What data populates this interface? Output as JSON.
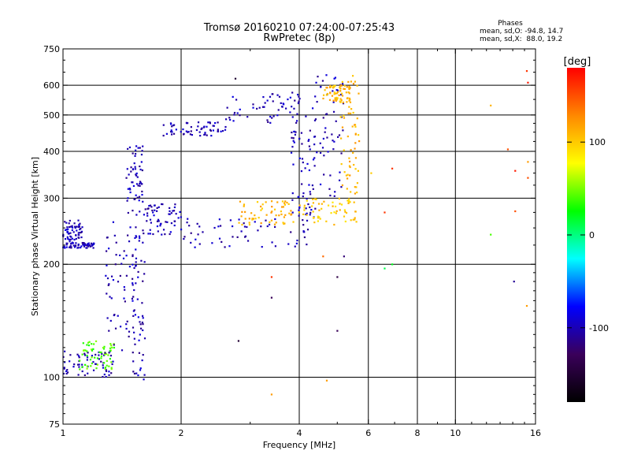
{
  "chart_data": {
    "type": "scatter",
    "title": "Tromsø 20160210 07:24:00-07:25:43",
    "subtitle": "RwPretec (8p)",
    "xlabel": "Frequency [MHz]",
    "ylabel": "Stationary phase Virtual Height [km]",
    "x_scale": "log",
    "y_scale": "log",
    "xlim": [
      1,
      16
    ],
    "ylim": [
      75,
      750
    ],
    "x_ticks": [
      1,
      2,
      4,
      6,
      8,
      10,
      16
    ],
    "x_tick_labels": [
      "1",
      "2",
      "4",
      "6",
      "8",
      "10",
      "16"
    ],
    "y_ticks": [
      75,
      100,
      200,
      300,
      400,
      500,
      600,
      750
    ],
    "y_tick_labels": [
      "75",
      "100",
      "200",
      "300",
      "400",
      "500",
      "600",
      "750"
    ],
    "grid": true,
    "stats": {
      "heading": "Phases",
      "line_o": "mean, sd,O: -94.8, 14.7",
      "line_x": "mean, sd,X:  88.0, 19.2"
    },
    "colorbar": {
      "label": "[deg]",
      "range": [
        -180,
        180
      ],
      "ticks": [
        100,
        0,
        -100
      ],
      "tick_labels": [
        "100",
        "0",
        "-100"
      ],
      "colors": [
        "#000000",
        "#3a005a",
        "#0000ff",
        "#00ffff",
        "#00ff00",
        "#ffff00",
        "#ff8800",
        "#ff0000"
      ]
    },
    "series": [
      {
        "phase": -100,
        "freq_range": [
          1.0,
          1.12
        ],
        "h_range": [
          230,
          262
        ]
      },
      {
        "phase": -100,
        "freq_range": [
          1.0,
          1.2
        ],
        "h_range": [
          221,
          229
        ]
      },
      {
        "phase": -100,
        "freq_range": [
          1.0,
          1.35
        ],
        "h_range": [
          100,
          118
        ]
      },
      {
        "phase": 40,
        "freq_range": [
          1.1,
          1.35
        ],
        "h_range": [
          105,
          125
        ]
      },
      {
        "phase": -100,
        "freq_range": [
          1.28,
          1.55
        ],
        "h_range": [
          115,
          260
        ]
      },
      {
        "phase": -100,
        "freq_range": [
          1.45,
          1.6
        ],
        "h_range": [
          270,
          420
        ]
      },
      {
        "phase": -100,
        "freq_range": [
          1.5,
          1.62
        ],
        "h_range": [
          98,
          260
        ]
      },
      {
        "phase": -100,
        "freq_range": [
          1.6,
          2.0
        ],
        "h_range": [
          240,
          290
        ]
      },
      {
        "phase": -100,
        "freq_range": [
          1.8,
          2.6
        ],
        "h_range": [
          440,
          480
        ]
      },
      {
        "phase": -100,
        "freq_range": [
          2.0,
          4.3
        ],
        "h_range": [
          222,
          265
        ]
      },
      {
        "phase": -100,
        "freq_range": [
          2.6,
          4.2
        ],
        "h_range": [
          475,
          575
        ]
      },
      {
        "phase": 110,
        "freq_range": [
          2.8,
          4.0
        ],
        "h_range": [
          255,
          295
        ]
      },
      {
        "phase": -100,
        "freq_range": [
          3.8,
          4.4
        ],
        "h_range": [
          265,
          460
        ]
      },
      {
        "phase": 100,
        "freq_range": [
          4.0,
          5.6
        ],
        "h_range": [
          255,
          300
        ]
      },
      {
        "phase": -100,
        "freq_range": [
          4.3,
          5.2
        ],
        "h_range": [
          300,
          650
        ]
      },
      {
        "phase": 110,
        "freq_range": [
          4.6,
          5.4
        ],
        "h_range": [
          540,
          600
        ]
      },
      {
        "phase": 110,
        "freq_range": [
          5.1,
          5.7
        ],
        "h_range": [
          300,
          640
        ]
      }
    ],
    "sparse_points": [
      {
        "x": 2.75,
        "y": 625,
        "phase": -150
      },
      {
        "x": 2.8,
        "y": 125,
        "phase": -150
      },
      {
        "x": 3.4,
        "y": 185,
        "phase": 160
      },
      {
        "x": 3.4,
        "y": 163,
        "phase": -130
      },
      {
        "x": 3.4,
        "y": 90,
        "phase": 120
      },
      {
        "x": 4.7,
        "y": 98,
        "phase": 120
      },
      {
        "x": 4.6,
        "y": 210,
        "phase": 140
      },
      {
        "x": 5.0,
        "y": 185,
        "phase": -140
      },
      {
        "x": 5.0,
        "y": 133,
        "phase": -130
      },
      {
        "x": 5.2,
        "y": 210,
        "phase": -120
      },
      {
        "x": 6.1,
        "y": 350,
        "phase": 100
      },
      {
        "x": 6.6,
        "y": 275,
        "phase": 160
      },
      {
        "x": 6.6,
        "y": 195,
        "phase": 10
      },
      {
        "x": 6.9,
        "y": 360,
        "phase": 160
      },
      {
        "x": 6.9,
        "y": 200,
        "phase": 20
      },
      {
        "x": 12.3,
        "y": 530,
        "phase": 110
      },
      {
        "x": 12.3,
        "y": 240,
        "phase": 40
      },
      {
        "x": 13.6,
        "y": 405,
        "phase": 150
      },
      {
        "x": 14.2,
        "y": 355,
        "phase": 170
      },
      {
        "x": 14.2,
        "y": 277,
        "phase": 150
      },
      {
        "x": 14.1,
        "y": 180,
        "phase": -110
      },
      {
        "x": 15.2,
        "y": 655,
        "phase": 160
      },
      {
        "x": 15.3,
        "y": 610,
        "phase": 170
      },
      {
        "x": 15.3,
        "y": 375,
        "phase": 120
      },
      {
        "x": 15.3,
        "y": 340,
        "phase": 150
      },
      {
        "x": 15.2,
        "y": 155,
        "phase": 120
      }
    ]
  }
}
